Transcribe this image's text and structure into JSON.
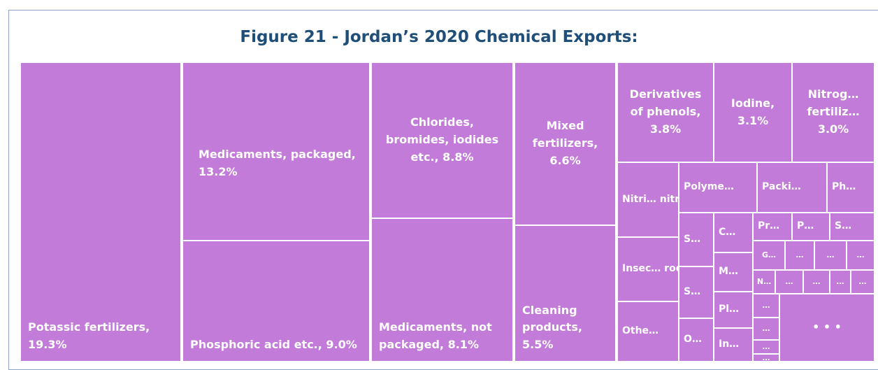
{
  "chart_data": {
    "type": "treemap",
    "title": "Figure 21 - Jordan’s 2020 Chemical Exports:",
    "color": "#c27bd8",
    "items": [
      {
        "name": "Potassic fertilizers,",
        "value": 19.3,
        "value_label": "19.3%"
      },
      {
        "name": "Medicaments, packaged,",
        "value": 13.2,
        "value_label": "13.2%"
      },
      {
        "name": "Phosphoric acid etc.,",
        "value": 9.0,
        "value_label": "9.0%"
      },
      {
        "name": "Chlorides, bromides, iodides etc.,",
        "value": 8.8,
        "value_label": "8.8%"
      },
      {
        "name": "Medicaments, not packaged,",
        "value": 8.1,
        "value_label": "8.1%"
      },
      {
        "name": "Mixed fertilizers,",
        "value": 6.6,
        "value_label": "6.6%"
      },
      {
        "name": "Cleaning products,",
        "value": 5.5,
        "value_label": "5.5%"
      },
      {
        "name": "Derivatives of phenols,",
        "value": 3.8,
        "value_label": "3.8%"
      },
      {
        "name": "Iodine,",
        "value": 3.1,
        "value_label": "3.1%"
      },
      {
        "name": "Nitrog… fertiliz…",
        "value": 3.0,
        "value_label": "3.0%"
      },
      {
        "name": "Nitri… nitra…",
        "value": 1.8
      },
      {
        "name": "Insec… rode…",
        "value": 1.5
      },
      {
        "name": "Othe…",
        "value": 1.4
      },
      {
        "name": "Polyme…",
        "value": 1.5
      },
      {
        "name": "Packi…",
        "value": 1.3
      },
      {
        "name": "Ph…",
        "value": 0.9
      },
      {
        "name": "S…",
        "value": 0.7
      },
      {
        "name": "S…",
        "value": 0.7
      },
      {
        "name": "O…",
        "value": 0.6
      },
      {
        "name": "C…",
        "value": 0.6
      },
      {
        "name": "M…",
        "value": 0.6
      },
      {
        "name": "Pl…",
        "value": 0.5
      },
      {
        "name": "In…",
        "value": 0.5
      },
      {
        "name": "Pr…",
        "value": 0.4
      },
      {
        "name": "P…",
        "value": 0.4
      },
      {
        "name": "S…",
        "value": 0.5
      },
      {
        "name": "G…",
        "value": 0.3
      },
      {
        "name": "…",
        "value": 0.3
      },
      {
        "name": "…",
        "value": 0.3
      },
      {
        "name": "…",
        "value": 0.3
      },
      {
        "name": "N…",
        "value": 0.2
      },
      {
        "name": "…",
        "value": 0.2
      },
      {
        "name": "…",
        "value": 0.2
      },
      {
        "name": "…",
        "value": 0.2
      },
      {
        "name": "…",
        "value": 0.2
      },
      {
        "name": "…",
        "value": 0.2
      },
      {
        "name": "…",
        "value": 0.2
      },
      {
        "name": "…",
        "value": 0.1
      },
      {
        "name": "…",
        "value": 0.1
      },
      {
        "name": "• • •",
        "value": 2.5
      }
    ]
  }
}
